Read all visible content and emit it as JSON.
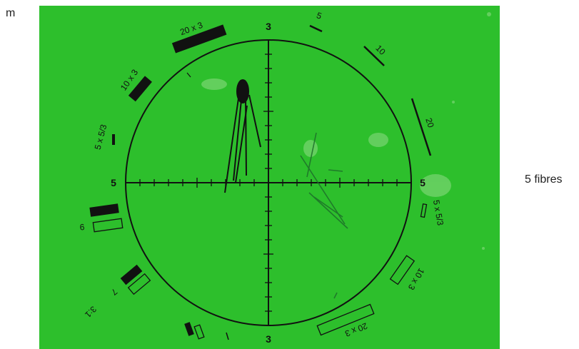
{
  "page": {
    "corner_label": "m",
    "side_caption": "5 fibres"
  },
  "graticule": {
    "background_color": "#2dbf2c",
    "line_color": "#111111",
    "axis_labels": {
      "top": "3",
      "bottom": "3",
      "left": "5",
      "right": "5"
    },
    "scale_marks": {
      "upper_right": [
        "5",
        "10",
        "20"
      ],
      "upper_left": [
        "20 x 3",
        "10 x 3",
        "5 x 5/3"
      ],
      "lower_right": [
        "5 x 5/3",
        "10 x 3",
        "20 x 3"
      ],
      "lower_left": [
        "9",
        "7",
        "3:1"
      ]
    }
  }
}
